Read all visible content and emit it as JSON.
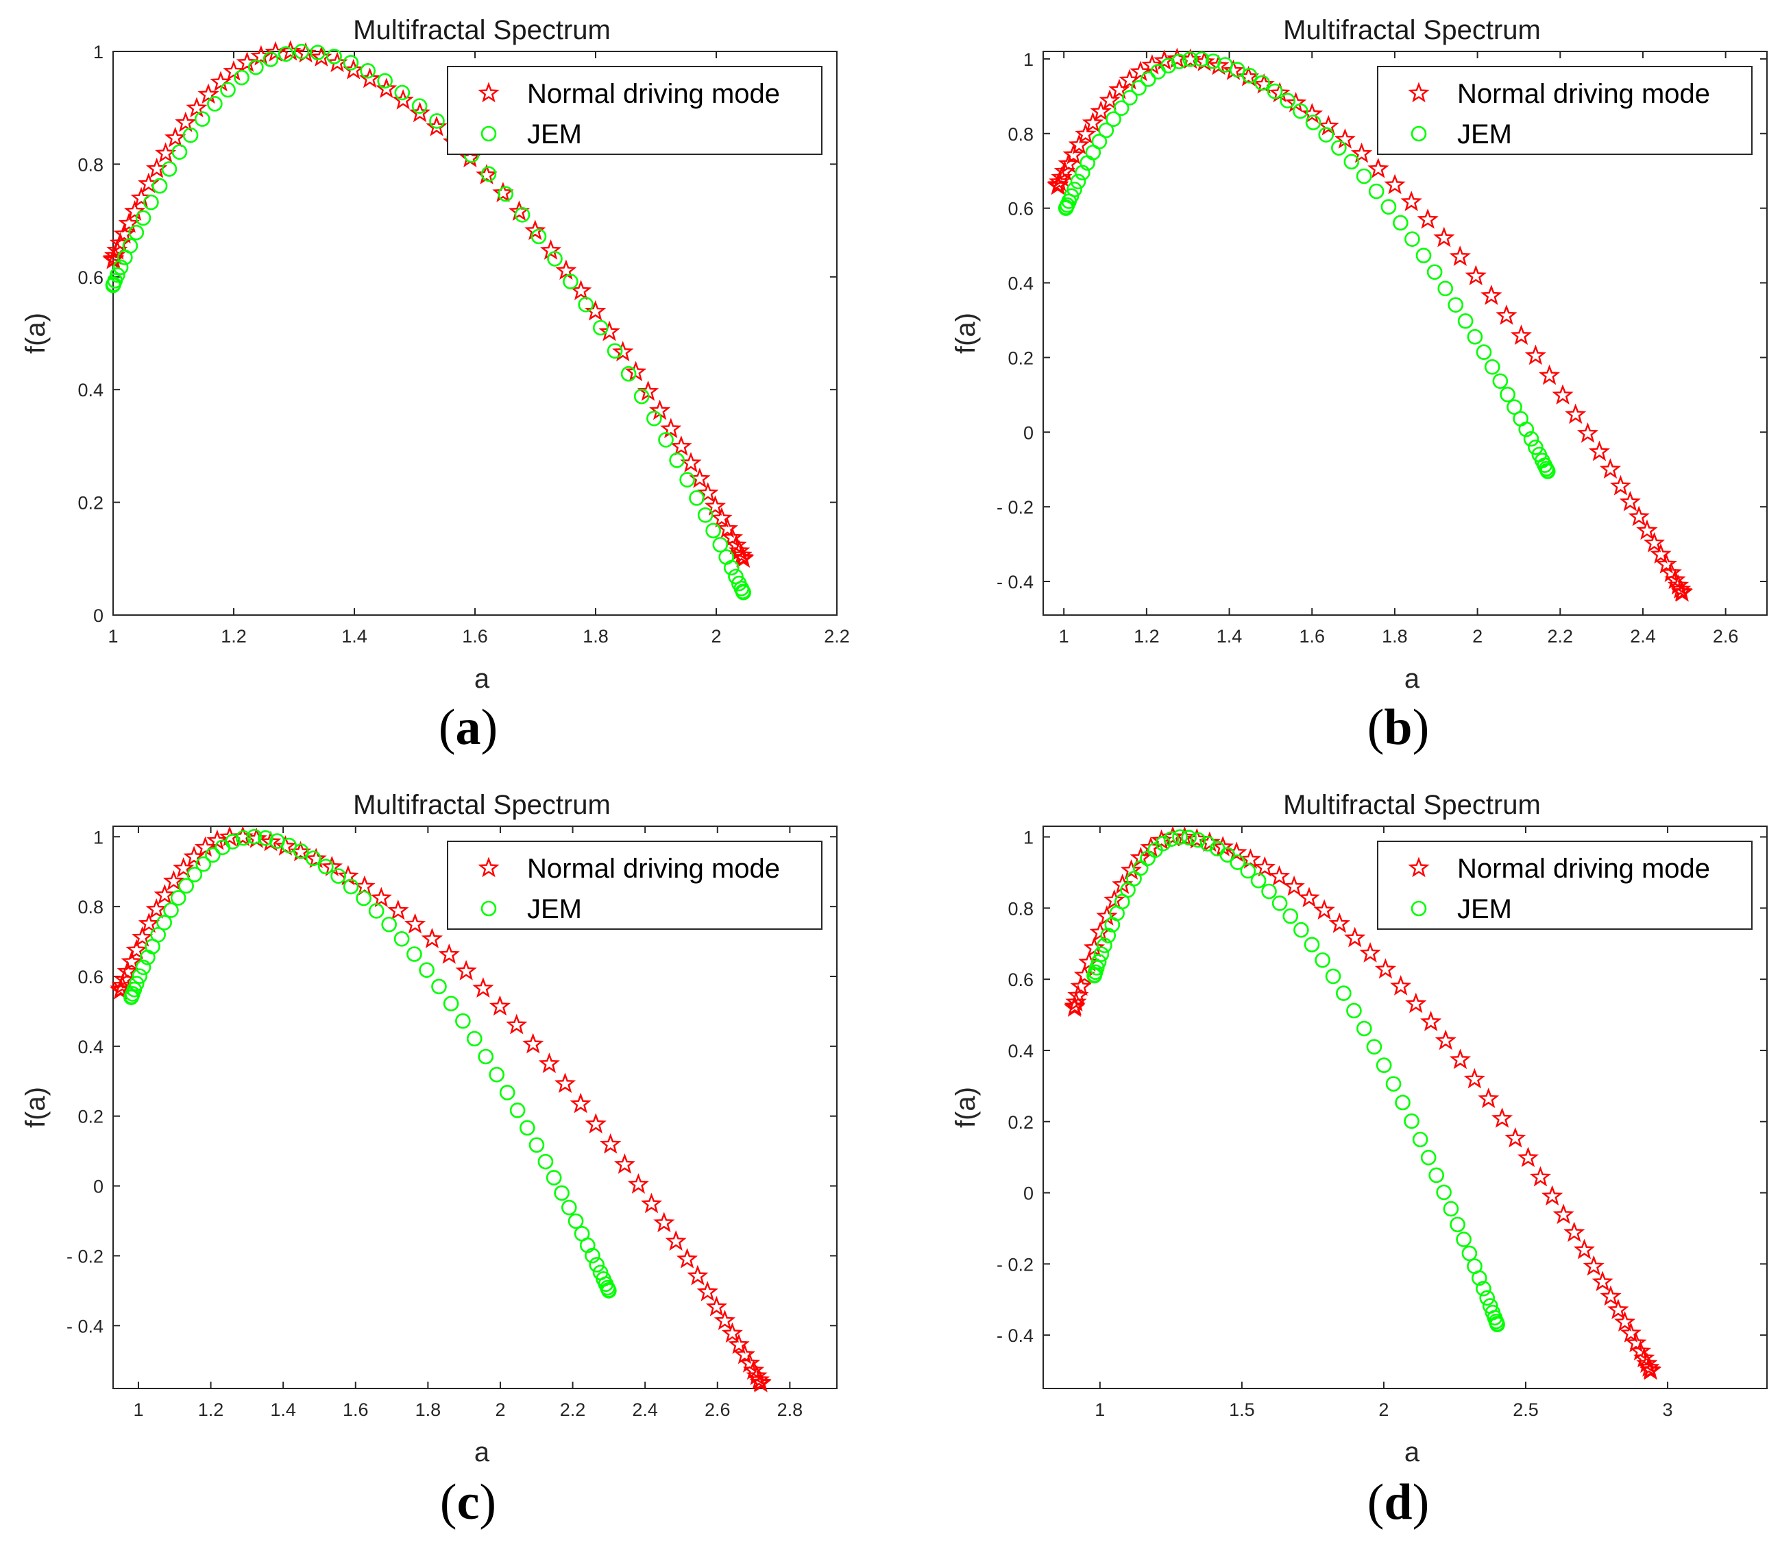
{
  "colors": {
    "normal": "#ff0000",
    "jem": "#00ff00",
    "axis": "#262626"
  },
  "legend": {
    "normal_label": "Normal driving mode",
    "jem_label": "JEM"
  },
  "chart_data": [
    {
      "type": "scatter",
      "title": "Multifractal Spectrum",
      "xlabel": "a",
      "ylabel": "f(a)",
      "panel_label": {
        "open": "(",
        "letter": "a",
        "close": ")"
      },
      "xlim": [
        1.0,
        2.2
      ],
      "ylim": [
        0.0,
        1.0
      ],
      "xticks": [
        "1",
        "1.2",
        "1.4",
        "1.6",
        "1.8",
        "2",
        "2.2"
      ],
      "yticks": [
        "0",
        "0.2",
        "0.4",
        "0.6",
        "0.8",
        "1"
      ],
      "legend_position": "top-right",
      "series": [
        {
          "name": "Normal driving mode",
          "marker": "star",
          "color": "#ff0000",
          "alpha_min": 1.0,
          "alpha_max": 2.045,
          "f_min": 0.63,
          "f_max_end": 0.1,
          "peak_alpha": 1.29,
          "n": 60
        },
        {
          "name": "JEM",
          "marker": "circle",
          "color": "#00ff00",
          "alpha_min": 1.0,
          "alpha_max": 2.045,
          "f_min": 0.585,
          "f_max_end": 0.04,
          "peak_alpha": 1.32,
          "n": 58
        }
      ]
    },
    {
      "type": "scatter",
      "title": "Multifractal Spectrum",
      "xlabel": "a",
      "ylabel": "f(a)",
      "panel_label": {
        "open": "(",
        "letter": "b",
        "close": ")"
      },
      "xlim": [
        0.95,
        2.7
      ],
      "ylim": [
        -0.49,
        1.02
      ],
      "xticks": [
        "1",
        "1.2",
        "1.4",
        "1.6",
        "1.8",
        "2",
        "2.2",
        "2.4",
        "2.6"
      ],
      "yticks": [
        "- 0.4",
        "- 0.2",
        "0",
        "0.2",
        "0.4",
        "0.6",
        "0.8",
        "1"
      ],
      "legend_position": "top-right",
      "series": [
        {
          "name": "Normal driving mode",
          "marker": "star",
          "color": "#ff0000",
          "alpha_min": 0.985,
          "alpha_max": 2.495,
          "f_min": 0.66,
          "f_max_end": -0.43,
          "peak_alpha": 1.28,
          "n": 60
        },
        {
          "name": "JEM",
          "marker": "circle",
          "color": "#00ff00",
          "alpha_min": 1.005,
          "alpha_max": 2.17,
          "f_min": 0.6,
          "f_max_end": -0.105,
          "peak_alpha": 1.32,
          "n": 60
        }
      ]
    },
    {
      "type": "scatter",
      "title": "Multifractal Spectrum",
      "xlabel": "a",
      "ylabel": "f(a)",
      "panel_label": {
        "open": "(",
        "letter": "c",
        "close": ")"
      },
      "xlim": [
        0.93,
        2.93
      ],
      "ylim": [
        -0.58,
        1.03
      ],
      "xticks": [
        "1",
        "1.2",
        "1.4",
        "1.6",
        "1.8",
        "2",
        "2.2",
        "2.4",
        "2.6",
        "2.8"
      ],
      "yticks": [
        "- 0.4",
        "- 0.2",
        "0",
        "0.2",
        "0.4",
        "0.6",
        "0.8",
        "1"
      ],
      "legend_position": "top-right",
      "series": [
        {
          "name": "Normal driving mode",
          "marker": "star",
          "color": "#ff0000",
          "alpha_min": 0.95,
          "alpha_max": 2.72,
          "f_min": 0.56,
          "f_max_end": -0.565,
          "peak_alpha": 1.27,
          "n": 60
        },
        {
          "name": "JEM",
          "marker": "circle",
          "color": "#00ff00",
          "alpha_min": 0.98,
          "alpha_max": 2.3,
          "f_min": 0.54,
          "f_max_end": -0.3,
          "peak_alpha": 1.32,
          "n": 60
        }
      ]
    },
    {
      "type": "scatter",
      "title": "Multifractal Spectrum",
      "xlabel": "a",
      "ylabel": "f(a)",
      "panel_label": {
        "open": "(",
        "letter": "d",
        "close": ")"
      },
      "xlim": [
        0.8,
        3.35
      ],
      "ylim": [
        -0.55,
        1.03
      ],
      "xticks": [
        "1",
        "1.5",
        "2",
        "2.5",
        "3"
      ],
      "yticks": [
        "- 0.4",
        "- 0.2",
        "0",
        "0.2",
        "0.4",
        "0.6",
        "0.8",
        "1"
      ],
      "legend_position": "top-right",
      "series": [
        {
          "name": "Normal driving mode",
          "marker": "star",
          "color": "#ff0000",
          "alpha_min": 0.91,
          "alpha_max": 2.94,
          "f_min": 0.52,
          "f_max_end": -0.5,
          "peak_alpha": 1.27,
          "n": 60
        },
        {
          "name": "JEM",
          "marker": "circle",
          "color": "#00ff00",
          "alpha_min": 0.98,
          "alpha_max": 2.4,
          "f_min": 0.61,
          "f_max_end": -0.37,
          "peak_alpha": 1.29,
          "n": 60
        }
      ]
    }
  ]
}
